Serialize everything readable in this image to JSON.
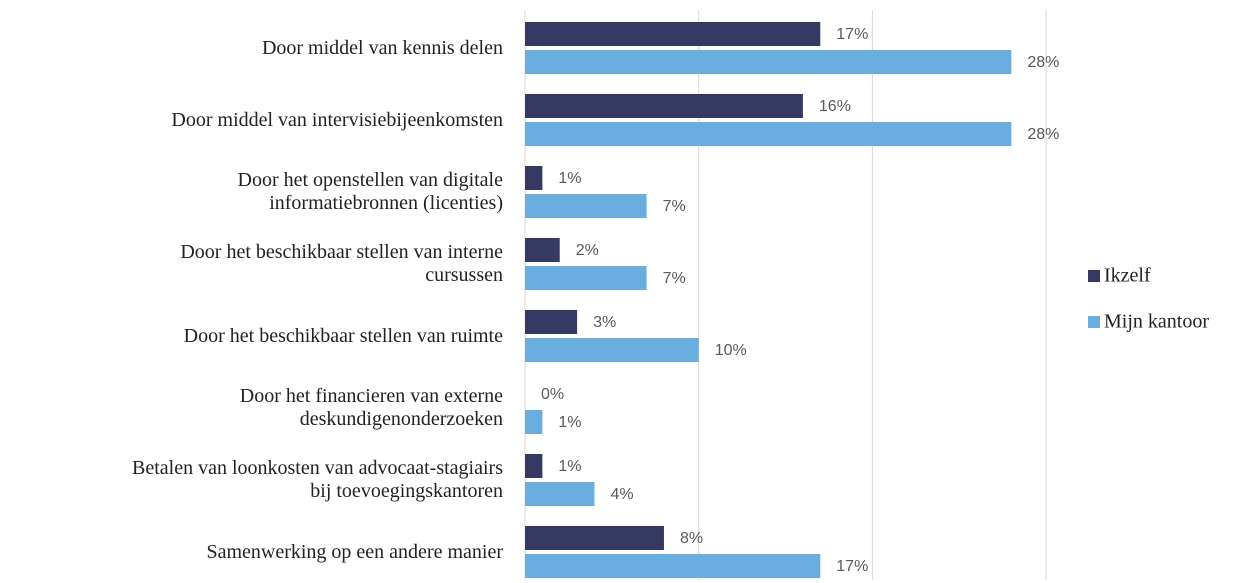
{
  "chart_data": {
    "type": "hbar",
    "categories": [
      "Door middel van kennis delen",
      "Door middel van intervisiebijeenkomsten",
      "Door het openstellen van digitale\ninformatiebronnen (licenties)",
      "Door het beschikbaar stellen van interne\ncursussen",
      "Door het beschikbaar stellen van ruimte",
      "Door het financieren van externe\ndeskundigenonderzoeken",
      "Betalen van loonkosten van advocaat-stagiairs\nbij toevoegingskantoren",
      "Samenwerking op een andere manier"
    ],
    "series": [
      {
        "name": "Ikzelf",
        "color": "#363a63",
        "values": [
          17,
          16,
          1,
          2,
          3,
          0,
          1,
          8
        ],
        "value_labels": [
          "17%",
          "16%",
          "1%",
          "2%",
          "3%",
          "0%",
          "1%",
          "8%"
        ]
      },
      {
        "name": "Mijn kantoor",
        "color": "#6aaee0",
        "values": [
          28,
          28,
          7,
          7,
          10,
          1,
          4,
          17
        ],
        "value_labels": [
          "28%",
          "28%",
          "7%",
          "7%",
          "10%",
          "1%",
          "4%",
          "17%"
        ]
      }
    ],
    "xlim": [
      0,
      40
    ],
    "xticks": [
      0,
      10,
      20,
      30
    ],
    "grid": true,
    "legend": "right"
  }
}
